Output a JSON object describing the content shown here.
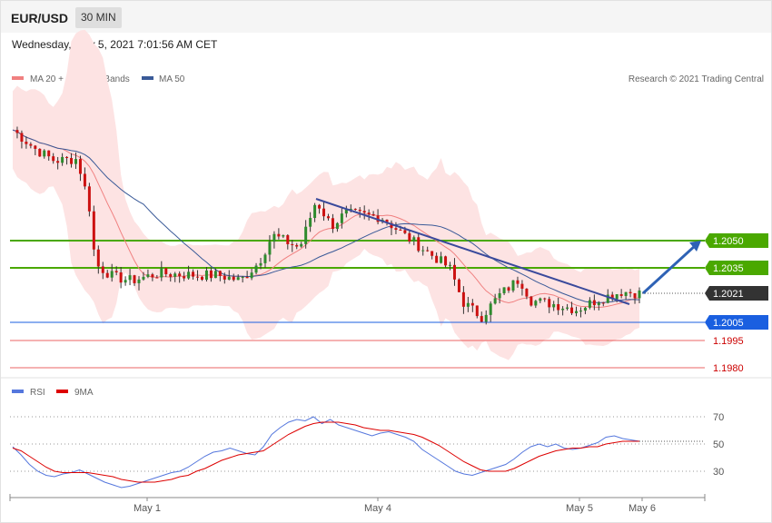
{
  "header": {
    "pair": "EUR/USD",
    "timeframe": "30 MIN",
    "datetime": "Wednesday, May 5, 2021 7:01:56 AM CET"
  },
  "legend": {
    "bb_label": "MA 20 + Bollinger Bands",
    "bb_color": "#f08080",
    "ma50_label": "MA 50",
    "ma50_color": "#3a5a98",
    "credit": "Research © 2021 Trading Central"
  },
  "rsi_legend": {
    "rsi_label": "RSI",
    "rsi_color": "#5577dd",
    "ma_label": "9MA",
    "ma_color": "#dd0000"
  },
  "chart_data": [
    {
      "type": "candlestick",
      "title": "EUR/USD",
      "ylim": [
        1.1975,
        1.2115
      ],
      "levels": [
        {
          "value": "1.2050",
          "num": 1.205,
          "kind": "resistance",
          "color": "#4aa800"
        },
        {
          "value": "1.2035",
          "num": 1.2035,
          "kind": "resistance",
          "color": "#4aa800"
        },
        {
          "value": "1.2021",
          "num": 1.2021,
          "kind": "last price",
          "color": "#333333"
        },
        {
          "value": "1.2005",
          "num": 1.2005,
          "kind": "pivot",
          "color": "#1a5fe0"
        },
        {
          "value": "1.1995",
          "num": 1.1995,
          "kind": "support",
          "color": "#dd0000"
        },
        {
          "value": "1.1980",
          "num": 1.198,
          "kind": "support",
          "color": "#dd0000"
        }
      ],
      "x_ticks": [
        "May 1",
        "May 4",
        "May 5",
        "May 6"
      ],
      "forecast_arrow": {
        "from": 1.2021,
        "to": 1.205,
        "color": "#2e62b5"
      },
      "trendline": {
        "from": 1.2073,
        "to": 1.2015,
        "color": "#3a4a9c"
      }
    },
    {
      "type": "line",
      "title": "RSI",
      "ylim": [
        20,
        80
      ],
      "y_ticks": [
        "70",
        "50",
        "30"
      ],
      "series": [
        {
          "name": "RSI",
          "values": [
            48,
            42,
            35,
            30,
            27,
            26,
            28,
            29,
            31,
            28,
            25,
            22,
            20,
            18,
            19,
            21,
            23,
            25,
            27,
            29,
            30,
            33,
            37,
            41,
            44,
            45,
            47,
            45,
            43,
            42,
            48,
            57,
            62,
            66,
            68,
            67,
            70,
            65,
            68,
            64,
            62,
            60,
            58,
            56,
            58,
            59,
            57,
            55,
            52,
            46,
            42,
            38,
            34,
            30,
            28,
            27,
            29,
            31,
            33,
            35,
            39,
            44,
            48,
            50,
            48,
            50,
            47,
            46,
            47,
            49,
            51,
            55,
            56,
            54,
            53,
            52
          ]
        },
        {
          "name": "9MA",
          "values": [
            47,
            45,
            41,
            37,
            33,
            30,
            29,
            29,
            29,
            29,
            28,
            27,
            26,
            24,
            23,
            22,
            22,
            22,
            23,
            24,
            26,
            27,
            30,
            32,
            35,
            38,
            40,
            42,
            43,
            44,
            45,
            49,
            53,
            57,
            60,
            63,
            65,
            66,
            66,
            66,
            65,
            64,
            62,
            61,
            60,
            60,
            59,
            58,
            57,
            55,
            52,
            49,
            45,
            41,
            37,
            34,
            31,
            30,
            30,
            30,
            32,
            35,
            38,
            41,
            43,
            45,
            46,
            47,
            47,
            48,
            48,
            50,
            51,
            52,
            52,
            52
          ]
        }
      ]
    }
  ]
}
